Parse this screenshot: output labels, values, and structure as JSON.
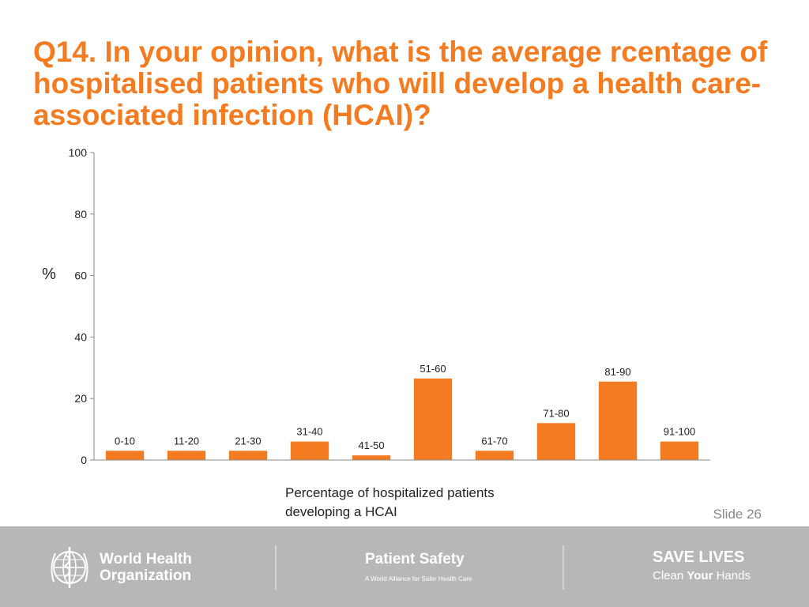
{
  "title": "Q14. In your opinion, what is the average rcentage of hospitalised patients who will develop a health care-associated infection (HCAI)?",
  "slide_label": "Slide 26",
  "footer": {
    "org_line1": "World Health",
    "org_line2": "Organization",
    "patient_safety_title": "Patient Safety",
    "patient_safety_sub": "A World Alliance for Safer Health Care",
    "save_lives": "SAVE LIVES",
    "clean_hands_pre": "Clean ",
    "clean_hands_bold": "Your",
    "clean_hands_post": " Hands"
  },
  "colors": {
    "accent": "#F47B20",
    "footer_bg": "#b7b7b7"
  },
  "chart_data": {
    "type": "bar",
    "title": "",
    "xlabel": "Percentage of hospitalized patients developing a HCAI",
    "ylabel": "%",
    "ylim": [
      0,
      100
    ],
    "yticks": [
      0,
      20,
      40,
      60,
      80,
      100
    ],
    "categories": [
      "0-10",
      "11-20",
      "21-30",
      "31-40",
      "41-50",
      "51-60",
      "61-70",
      "71-80",
      "81-90",
      "91-100"
    ],
    "values": [
      3,
      3,
      3,
      6,
      1.5,
      26.5,
      3,
      12,
      25.5,
      6
    ],
    "bar_color": "#F47B20",
    "grid": false
  }
}
